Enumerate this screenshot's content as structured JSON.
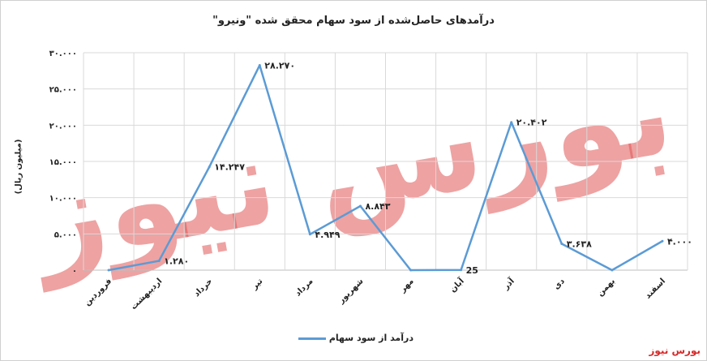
{
  "chart_data": {
    "type": "line",
    "title": "درآمدهای حاصل‌شده از سود سهام محقق شده \"ونیرو\"",
    "ylabel": "(میلیون ریال)",
    "xlabel": "",
    "categories": [
      "فروردین",
      "اردیبهشت",
      "خرداد",
      "تیر",
      "مرداد",
      "شهریور",
      "مهر",
      "آبان",
      "آذر",
      "دی",
      "بهمن",
      "اسفند"
    ],
    "series": [
      {
        "name": "درآمد از سود سهام",
        "values": [
          0,
          1280,
          14247,
          28270,
          4949,
          8843,
          0,
          25,
          20402,
          3638,
          0,
          4000
        ],
        "color": "#5b9bd5"
      }
    ],
    "data_labels": [
      "",
      "۱.۲۸۰",
      "۱۴.۲۴۷",
      "۲۸.۲۷۰",
      "۴.۹۴۹",
      "۸.۸۴۳",
      "",
      "25",
      "۲۰.۴۰۲",
      "۳.۶۳۸",
      "",
      "۴.۰۰۰"
    ],
    "yticks": [
      0,
      5000,
      10000,
      15000,
      20000,
      25000,
      30000
    ],
    "ytick_labels": [
      "۰",
      "۵.۰۰۰",
      "۱۰.۰۰۰",
      "۱۵.۰۰۰",
      "۲۰.۰۰۰",
      "۲۵.۰۰۰",
      "۳۰.۰۰۰"
    ],
    "ylim": [
      0,
      30000
    ],
    "grid": true,
    "legend_position": "bottom"
  },
  "watermark": {
    "text": "بورس نیوز",
    "color": "#e05555"
  },
  "brand": "بورس نیوز"
}
